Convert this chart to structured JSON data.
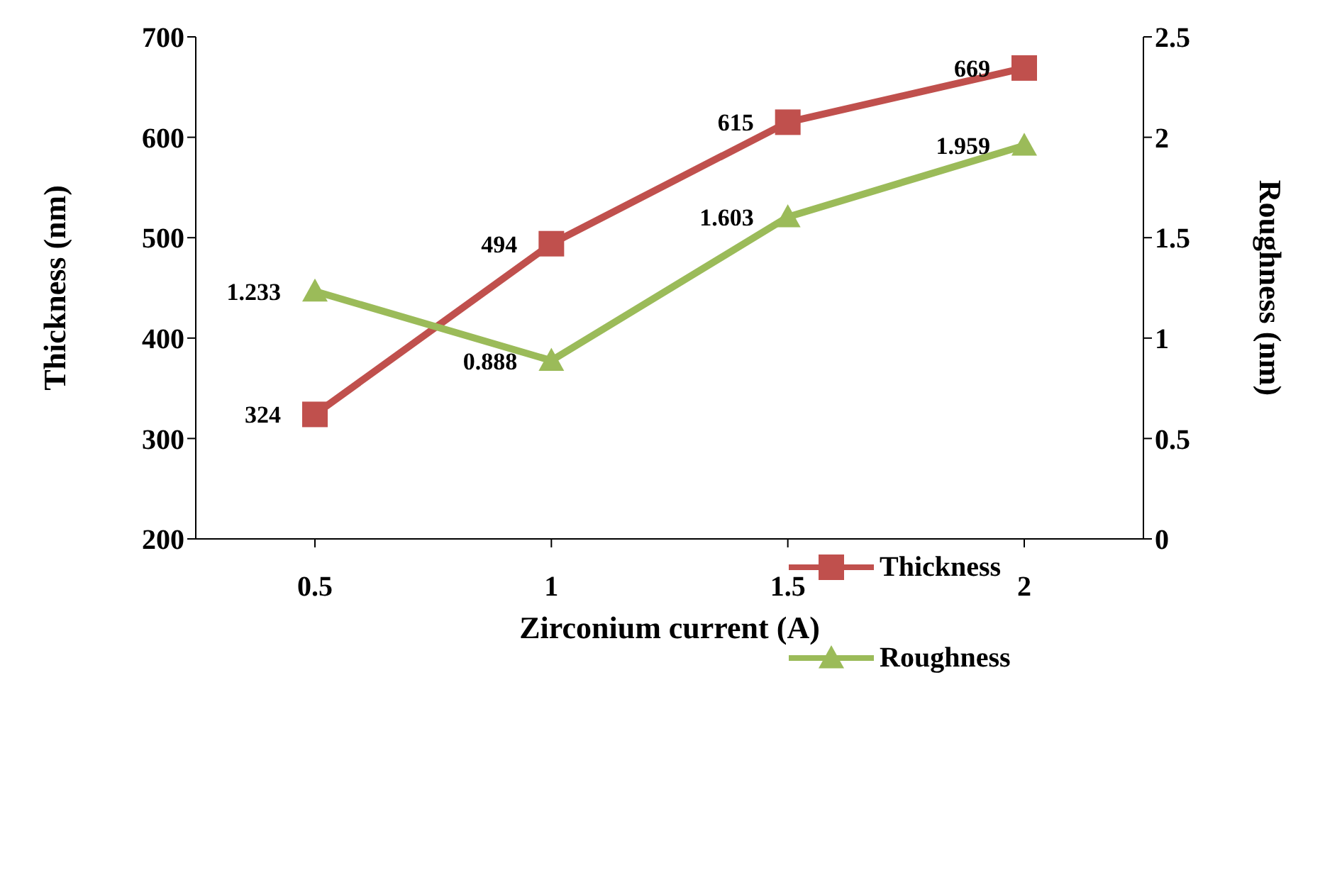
{
  "chart_data": {
    "type": "line",
    "xlabel": "Zirconium current (A)",
    "ylabel": "Thickness (nm)",
    "y2label": "Roughness (nm)",
    "categories": [
      "0.5",
      "1",
      "1.5",
      "2"
    ],
    "series": [
      {
        "name": "Thickness",
        "color": "#c0504d",
        "values": [
          324,
          494,
          615,
          669
        ],
        "marker": "square"
      },
      {
        "name": "Roughness",
        "color": "#9bbb59",
        "values": [
          1.233,
          0.888,
          1.603,
          1.959
        ],
        "marker": "triangle",
        "axis": "y2"
      }
    ],
    "ylim": [
      200,
      700
    ],
    "yticks": [
      200,
      300,
      400,
      500,
      600,
      700
    ],
    "y2lim": [
      0,
      2.5
    ],
    "y2ticks": [
      0,
      0.5,
      1,
      1.5,
      2,
      2.5
    ],
    "data_labels": true,
    "grid": false,
    "legend": "bottom right"
  }
}
